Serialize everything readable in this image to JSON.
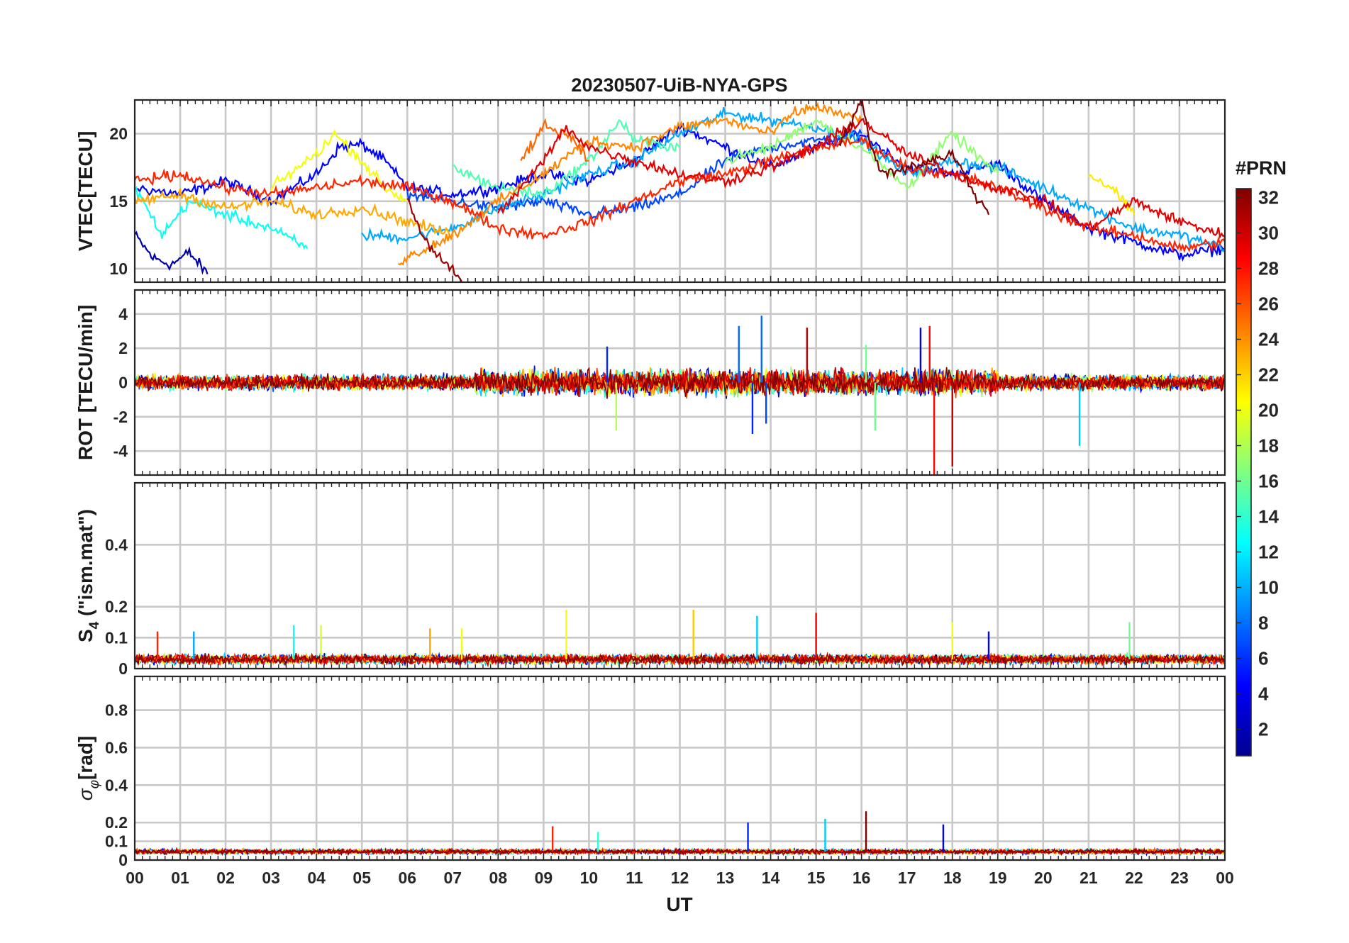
{
  "chart_data": {
    "type": "line",
    "title": "20230507-UiB-NYA-GPS",
    "xlabel": "UT",
    "x_tick_labels": [
      "00",
      "01",
      "02",
      "03",
      "04",
      "05",
      "06",
      "07",
      "08",
      "09",
      "10",
      "11",
      "12",
      "13",
      "14",
      "15",
      "16",
      "17",
      "18",
      "19",
      "20",
      "21",
      "22",
      "23",
      "00"
    ],
    "xlim_hours": [
      0,
      24
    ],
    "grid": true,
    "colorbar": {
      "label": "#PRN",
      "colormap": "jet",
      "range": [
        1,
        32
      ],
      "tick_labels": [
        "2",
        "4",
        "6",
        "8",
        "10",
        "12",
        "14",
        "16",
        "18",
        "20",
        "22",
        "24",
        "26",
        "28",
        "30",
        "32"
      ],
      "colors": [
        "#00008f",
        "#0000ff",
        "#0080ff",
        "#00ffff",
        "#80ff80",
        "#ffff00",
        "#ff8000",
        "#ff0000",
        "#800000"
      ]
    },
    "panels": [
      {
        "ylabel": "VTEC[TECU]",
        "ylim": [
          9,
          22.5
        ],
        "yticks": [
          "10",
          "15",
          "20"
        ],
        "description_values": "VTEC traces per satellite, mostly 11-21 TECU, peaking near 20-22 TECU around 14-16 UT",
        "series": [
          {
            "prn": 2,
            "x": [
              0,
              0.4,
              0.8,
              1.2,
              1.6
            ],
            "y": [
              12.5,
              10.8,
              10.3,
              11.2,
              9.6
            ]
          },
          {
            "prn": 5,
            "x": [
              0,
              1,
              2,
              3,
              4,
              4.5,
              5,
              5.5,
              6,
              7,
              8,
              9,
              10,
              11,
              12,
              13,
              14,
              15,
              16,
              17,
              18,
              19,
              20,
              21,
              22,
              23,
              24
            ],
            "y": [
              16,
              15.5,
              16.5,
              15,
              17,
              19,
              19.2,
              18,
              16,
              15.5,
              16,
              17,
              16.5,
              18,
              20.5,
              19,
              17.5,
              19,
              20,
              17.5,
              17,
              17.8,
              15,
              13,
              12,
              11,
              11.5
            ]
          },
          {
            "prn": 7,
            "x": [
              6,
              7,
              8,
              9,
              10,
              11,
              12,
              13,
              14,
              15,
              16
            ],
            "y": [
              15.5,
              15,
              14.5,
              15,
              14,
              14.5,
              15.5,
              18,
              19,
              19.5,
              20
            ]
          },
          {
            "prn": 10,
            "x": [
              5,
              6,
              7,
              8,
              9,
              10,
              11,
              12,
              13,
              14,
              15,
              16,
              17,
              18,
              19,
              20,
              21,
              22,
              23,
              24
            ],
            "y": [
              12.5,
              12.3,
              13,
              14.5,
              15.5,
              17,
              18,
              20,
              21.5,
              21,
              20.5,
              19.5,
              17,
              18,
              17.5,
              16,
              14.5,
              13,
              12.5,
              11.5
            ]
          },
          {
            "prn": 13,
            "x": [
              0,
              0.6,
              1.2,
              2,
              3,
              3.8
            ],
            "y": [
              16,
              12.5,
              15,
              14,
              13,
              11.5
            ]
          },
          {
            "prn": 15,
            "x": [
              7,
              8,
              9,
              10,
              10.7,
              11,
              12
            ],
            "y": [
              17.5,
              16,
              15.5,
              18,
              21,
              19.5,
              19
            ]
          },
          {
            "prn": 17,
            "x": [
              13,
              14,
              15,
              16,
              17,
              18,
              19
            ],
            "y": [
              18,
              19,
              21,
              19,
              16,
              20,
              17
            ]
          },
          {
            "prn": 20,
            "x": [
              3,
              4,
              4.4,
              5,
              5.5,
              6
            ],
            "y": [
              16,
              18.5,
              20,
              18,
              16,
              15
            ]
          },
          {
            "prn": 21,
            "x": [
              21,
              21.5,
              22
            ],
            "y": [
              17,
              16,
              14
            ]
          },
          {
            "prn": 23,
            "x": [
              0,
              1,
              2,
              3,
              4,
              5,
              6,
              7
            ],
            "y": [
              15,
              15.5,
              14.5,
              15,
              14,
              14.5,
              13.5,
              12.5
            ]
          },
          {
            "prn": 24,
            "x": [
              5.8,
              7,
              8,
              9,
              10,
              11,
              12,
              13,
              14,
              14.5,
              15,
              16
            ],
            "y": [
              10.5,
              12.5,
              15,
              17,
              19.5,
              19,
              20.5,
              21,
              20,
              21.5,
              22,
              21
            ]
          },
          {
            "prn": 25,
            "x": [
              8.5,
              9,
              9.5,
              10
            ],
            "y": [
              18,
              20.5,
              20,
              18
            ]
          },
          {
            "prn": 27,
            "x": [
              0,
              1,
              2,
              3,
              4,
              5,
              6,
              7,
              8,
              9,
              10,
              11,
              12,
              13,
              14,
              15,
              16,
              17,
              18,
              19,
              20,
              21,
              22,
              23,
              24
            ],
            "y": [
              16.5,
              17,
              16,
              15.5,
              16,
              16.5,
              16,
              15,
              13,
              12.5,
              13.5,
              15,
              16.5,
              17,
              18,
              19,
              19.5,
              17.5,
              17,
              16,
              14.5,
              13,
              12.5,
              11.5,
              12
            ]
          },
          {
            "prn": 29,
            "x": [
              8,
              9,
              9.5,
              10,
              11,
              12,
              13,
              14,
              15,
              16,
              17,
              18,
              19,
              20,
              21,
              22,
              23,
              24
            ],
            "y": [
              14,
              18,
              20.5,
              19,
              18,
              17,
              16.5,
              17.5,
              19,
              21,
              18.5,
              17,
              16,
              15,
              13,
              15,
              13.5,
              12.5
            ]
          },
          {
            "prn": 31,
            "x": [
              6,
              6.5,
              7,
              7.3
            ],
            "y": [
              15,
              11.5,
              10,
              8.8
            ]
          },
          {
            "prn": 32,
            "x": [
              15.5,
              16,
              16.2,
              16.5,
              17,
              18,
              18.5,
              18.8
            ],
            "y": [
              19,
              22.5,
              19,
              17,
              17.5,
              18.5,
              15.5,
              14
            ]
          }
        ]
      },
      {
        "ylabel": "ROT [TECU/min]",
        "ylim": [
          -5.4,
          5.4
        ],
        "yticks": [
          "-4",
          "-2",
          "0",
          "2",
          "4"
        ],
        "description_values": "rate of TEC noise around 0, within +/-1 TECU/min generally; spikes up to ~4 near 13.5-14 UT and down to ~-5.4 near 17.6 and 18 UT",
        "spikes": [
          {
            "prn": 6,
            "x": 10.4,
            "y": 2.1
          },
          {
            "prn": 18,
            "x": 10.6,
            "y": -2.8
          },
          {
            "prn": 8,
            "x": 13.3,
            "y": 3.3
          },
          {
            "prn": 6,
            "x": 13.6,
            "y": -3.0
          },
          {
            "prn": 8,
            "x": 13.8,
            "y": 3.9
          },
          {
            "prn": 7,
            "x": 13.9,
            "y": -2.4
          },
          {
            "prn": 30,
            "x": 14.8,
            "y": 3.2
          },
          {
            "prn": 16,
            "x": 16.3,
            "y": -2.8
          },
          {
            "prn": 28,
            "x": 17.5,
            "y": 3.3
          },
          {
            "prn": 28,
            "x": 17.6,
            "y": -5.4
          },
          {
            "prn": 4,
            "x": 17.3,
            "y": 3.2
          },
          {
            "prn": 30,
            "x": 18.0,
            "y": -4.9
          },
          {
            "prn": 11,
            "x": 20.8,
            "y": -3.7
          },
          {
            "prn": 16,
            "x": 16.1,
            "y": 2.2
          }
        ]
      },
      {
        "ylabel": "S_4 (\"ism.mat\")",
        "ylabel_main": "S",
        "ylabel_sub": "4",
        "ylabel_rest": " (\"ism.mat\")",
        "ylim": [
          0,
          0.6
        ],
        "yticks": [
          "0",
          "0.1",
          "0.2",
          "0.4"
        ],
        "description_values": "S4 index mostly 0.02-0.06 with peaks near 0.19 at 9.5 and 12.2 UT and 0.18 at 15 UT",
        "spikes": [
          {
            "prn": 27,
            "x": 0.5,
            "y": 0.12
          },
          {
            "prn": 10,
            "x": 1.3,
            "y": 0.12
          },
          {
            "prn": 13,
            "x": 3.5,
            "y": 0.14
          },
          {
            "prn": 19,
            "x": 4.1,
            "y": 0.14
          },
          {
            "prn": 23,
            "x": 6.5,
            "y": 0.13
          },
          {
            "prn": 20,
            "x": 7.2,
            "y": 0.13
          },
          {
            "prn": 20,
            "x": 9.5,
            "y": 0.19
          },
          {
            "prn": 22,
            "x": 12.3,
            "y": 0.19
          },
          {
            "prn": 11,
            "x": 13.7,
            "y": 0.17
          },
          {
            "prn": 28,
            "x": 15.0,
            "y": 0.18
          },
          {
            "prn": 20,
            "x": 18.0,
            "y": 0.15
          },
          {
            "prn": 5,
            "x": 18.8,
            "y": 0.12
          },
          {
            "prn": 16,
            "x": 21.9,
            "y": 0.15
          }
        ]
      },
      {
        "ylabel": "σ_φ[rad]",
        "ylabel_main": "σ",
        "ylabel_sub": "φ",
        "ylabel_rest": "[rad]",
        "ylim": [
          0,
          0.98
        ],
        "yticks": [
          "0",
          "0.1",
          "0.2",
          "0.4",
          "0.6",
          "0.8"
        ],
        "description_values": "phase scintillation mostly 0.03-0.07 rad, peaks 0.18 near 9.2 UT, 0.2 near 13.5 UT, 0.22 near 15.2 UT, 0.26 near 16.1 UT",
        "spikes": [
          {
            "prn": 27,
            "x": 9.2,
            "y": 0.18
          },
          {
            "prn": 14,
            "x": 10.2,
            "y": 0.15
          },
          {
            "prn": 6,
            "x": 13.5,
            "y": 0.2
          },
          {
            "prn": 11,
            "x": 15.2,
            "y": 0.22
          },
          {
            "prn": 32,
            "x": 16.1,
            "y": 0.26
          },
          {
            "prn": 5,
            "x": 17.8,
            "y": 0.19
          }
        ]
      }
    ]
  }
}
